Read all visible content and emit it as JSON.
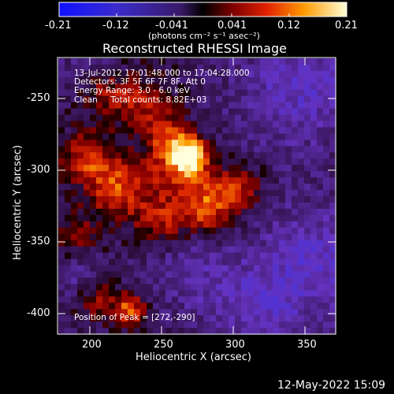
{
  "colorbar": {
    "ticks": [
      "-0.21",
      "-0.12",
      "-0.041",
      "0.041",
      "0.12",
      "0.21"
    ],
    "units_label": "(photons cm⁻² s⁻¹ asec⁻²)"
  },
  "plot": {
    "title": "Reconstructed RHESSI Image",
    "info_lines": [
      "13-Jul-2012 17:01:48.000 to 17:04:28.000",
      "Detectors: 3F 5F 6F 7F 8F, Att 0",
      "Energy Range: 3.0 - 6.0 keV",
      "Clean     Total counts: 8.82E+03"
    ],
    "peak_label": "Position of Peak = [272,-290]",
    "xlabel": "Heliocentric X (arcsec)",
    "ylabel": "Heliocentric Y (arcsec)",
    "xticks": [
      "200",
      "250",
      "300",
      "350"
    ],
    "yticks": [
      "-250",
      "-300",
      "-350",
      "-400"
    ],
    "xlim": [
      178,
      372
    ],
    "ylim": [
      -418,
      -226
    ]
  },
  "footer": {
    "timestamp": "12-May-2022 15:09"
  }
}
